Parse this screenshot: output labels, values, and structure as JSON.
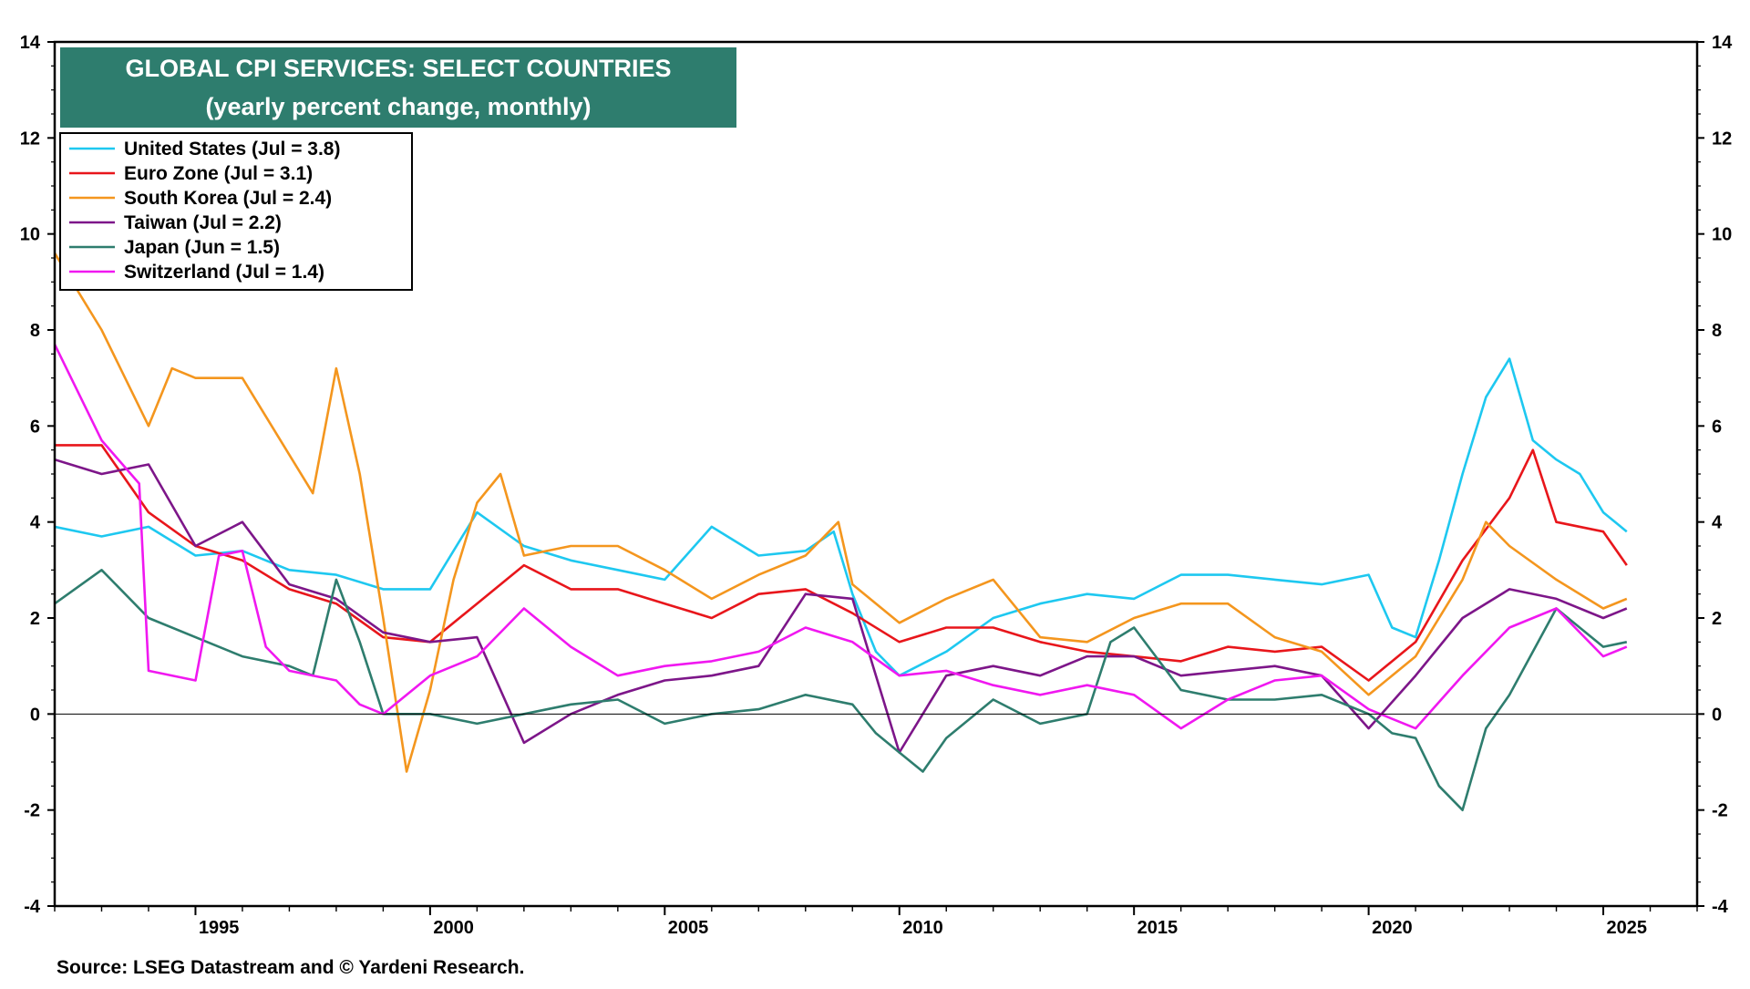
{
  "title": "GLOBAL CPI SERVICES: SELECT COUNTRIES",
  "subtitle": "(yearly percent change, monthly)",
  "source": "Source: LSEG Datastream and © Yardeni Research.",
  "colors": {
    "title_bg": "#2e7d6e",
    "zero_line": "#000000",
    "frame": "#000000"
  },
  "chart_data": {
    "type": "line",
    "title": "GLOBAL CPI SERVICES: SELECT COUNTRIES",
    "subtitle": "(yearly percent change, monthly)",
    "xlim": [
      1992.0,
      2027.0
    ],
    "ylim": [
      -4,
      14
    ],
    "x_ticks": [
      1995,
      2000,
      2005,
      2010,
      2015,
      2020,
      2025
    ],
    "x_tick_labels": [
      "1995",
      "2000",
      "2005",
      "2010",
      "2015",
      "2020",
      "2025"
    ],
    "y_ticks": [
      -4,
      -2,
      0,
      2,
      4,
      6,
      8,
      10,
      12,
      14
    ],
    "y_tick_labels": [
      "-4",
      "-2",
      "0",
      "2",
      "4",
      "6",
      "8",
      "10",
      "12",
      "14"
    ],
    "grid": false,
    "legend_position": "top-left",
    "series": [
      {
        "name": "United States (Jul = 3.8)",
        "color": "#1ec8f0",
        "x": [
          1992.0,
          1993.0,
          1994.0,
          1995.0,
          1996.0,
          1997.0,
          1998.0,
          1999.0,
          2000.0,
          2001.0,
          2002.0,
          2003.0,
          2004.0,
          2005.0,
          2006.0,
          2007.0,
          2008.0,
          2008.6,
          2009.0,
          2009.5,
          2010.0,
          2011.0,
          2012.0,
          2013.0,
          2014.0,
          2015.0,
          2016.0,
          2017.0,
          2018.0,
          2019.0,
          2020.0,
          2020.5,
          2021.0,
          2021.5,
          2022.0,
          2022.5,
          2023.0,
          2023.5,
          2024.0,
          2024.5,
          2025.0,
          2025.5
        ],
        "y": [
          3.9,
          3.7,
          3.9,
          3.3,
          3.4,
          3.0,
          2.9,
          2.6,
          2.6,
          4.2,
          3.5,
          3.2,
          3.0,
          2.8,
          3.9,
          3.3,
          3.4,
          3.8,
          2.5,
          1.3,
          0.8,
          1.3,
          2.0,
          2.3,
          2.5,
          2.4,
          2.9,
          2.9,
          2.8,
          2.7,
          2.9,
          1.8,
          1.6,
          3.2,
          5.0,
          6.6,
          7.4,
          5.7,
          5.3,
          5.0,
          4.2,
          3.8
        ]
      },
      {
        "name": "Euro Zone (Jul = 3.1)",
        "color": "#e8161b",
        "x": [
          1992.0,
          1993.0,
          1994.0,
          1995.0,
          1996.0,
          1997.0,
          1998.0,
          1999.0,
          2000.0,
          2001.0,
          2002.0,
          2003.0,
          2004.0,
          2005.0,
          2006.0,
          2007.0,
          2008.0,
          2009.0,
          2010.0,
          2011.0,
          2012.0,
          2013.0,
          2014.0,
          2015.0,
          2016.0,
          2017.0,
          2018.0,
          2019.0,
          2020.0,
          2021.0,
          2022.0,
          2023.0,
          2023.5,
          2024.0,
          2025.0,
          2025.5
        ],
        "y": [
          5.6,
          5.6,
          4.2,
          3.5,
          3.2,
          2.6,
          2.3,
          1.6,
          1.5,
          2.3,
          3.1,
          2.6,
          2.6,
          2.3,
          2.0,
          2.5,
          2.6,
          2.1,
          1.5,
          1.8,
          1.8,
          1.5,
          1.3,
          1.2,
          1.1,
          1.4,
          1.3,
          1.4,
          0.7,
          1.5,
          3.2,
          4.5,
          5.5,
          4.0,
          3.8,
          3.1
        ]
      },
      {
        "name": "South Korea (Jul = 2.4)",
        "color": "#f4961e",
        "x": [
          1992.0,
          1993.0,
          1994.0,
          1994.5,
          1995.0,
          1996.0,
          1997.0,
          1997.5,
          1998.0,
          1998.5,
          1999.0,
          1999.5,
          2000.0,
          2000.5,
          2001.0,
          2001.5,
          2002.0,
          2003.0,
          2004.0,
          2005.0,
          2006.0,
          2007.0,
          2008.0,
          2008.7,
          2009.0,
          2010.0,
          2011.0,
          2012.0,
          2013.0,
          2014.0,
          2015.0,
          2016.0,
          2017.0,
          2018.0,
          2019.0,
          2020.0,
          2021.0,
          2022.0,
          2022.5,
          2023.0,
          2024.0,
          2025.0,
          2025.5
        ],
        "y": [
          9.6,
          8.0,
          6.0,
          7.2,
          7.0,
          7.0,
          5.4,
          4.6,
          7.2,
          5.0,
          2.0,
          -1.2,
          0.5,
          2.8,
          4.4,
          5.0,
          3.3,
          3.5,
          3.5,
          3.0,
          2.4,
          2.9,
          3.3,
          4.0,
          2.7,
          1.9,
          2.4,
          2.8,
          1.6,
          1.5,
          2.0,
          2.3,
          2.3,
          1.6,
          1.3,
          0.4,
          1.2,
          2.8,
          4.0,
          3.5,
          2.8,
          2.2,
          2.4
        ]
      },
      {
        "name": "Taiwan (Jul = 2.2)",
        "color": "#7d1689",
        "x": [
          1992.0,
          1993.0,
          1994.0,
          1995.0,
          1996.0,
          1997.0,
          1998.0,
          1999.0,
          2000.0,
          2001.0,
          2002.0,
          2003.0,
          2004.0,
          2005.0,
          2006.0,
          2007.0,
          2008.0,
          2009.0,
          2010.0,
          2011.0,
          2012.0,
          2013.0,
          2014.0,
          2015.0,
          2016.0,
          2017.0,
          2018.0,
          2019.0,
          2020.0,
          2021.0,
          2022.0,
          2023.0,
          2024.0,
          2025.0,
          2025.5
        ],
        "y": [
          5.3,
          5.0,
          5.2,
          3.5,
          4.0,
          2.7,
          2.4,
          1.7,
          1.5,
          1.6,
          -0.6,
          0.0,
          0.4,
          0.7,
          0.8,
          1.0,
          2.5,
          2.4,
          -0.8,
          0.8,
          1.0,
          0.8,
          1.2,
          1.2,
          0.8,
          0.9,
          1.0,
          0.8,
          -0.3,
          0.8,
          2.0,
          2.6,
          2.4,
          2.0,
          2.2
        ]
      },
      {
        "name": "Japan (Jun = 1.5)",
        "color": "#2e7d6e",
        "x": [
          1992.0,
          1993.0,
          1994.0,
          1995.0,
          1996.0,
          1997.0,
          1997.5,
          1998.0,
          1998.5,
          1999.0,
          2000.0,
          2001.0,
          2002.0,
          2003.0,
          2004.0,
          2005.0,
          2006.0,
          2007.0,
          2008.0,
          2009.0,
          2009.5,
          2010.0,
          2010.5,
          2011.0,
          2012.0,
          2013.0,
          2014.0,
          2014.5,
          2015.0,
          2016.0,
          2017.0,
          2018.0,
          2019.0,
          2020.0,
          2020.5,
          2021.0,
          2021.5,
          2022.0,
          2022.5,
          2023.0,
          2024.0,
          2025.0,
          2025.5
        ],
        "y": [
          2.3,
          3.0,
          2.0,
          1.6,
          1.2,
          1.0,
          0.8,
          2.8,
          1.5,
          0.0,
          0.0,
          -0.2,
          0.0,
          0.2,
          0.3,
          -0.2,
          0.0,
          0.1,
          0.4,
          0.2,
          -0.4,
          -0.8,
          -1.2,
          -0.5,
          0.3,
          -0.2,
          0.0,
          1.5,
          1.8,
          0.5,
          0.3,
          0.3,
          0.4,
          0.0,
          -0.4,
          -0.5,
          -1.5,
          -2.0,
          -0.3,
          0.4,
          2.2,
          1.4,
          1.5
        ]
      },
      {
        "name": "Switzerland (Jul = 1.4)",
        "color": "#f018f0",
        "x": [
          1992.0,
          1993.0,
          1993.8,
          1994.0,
          1995.0,
          1995.5,
          1996.0,
          1996.5,
          1997.0,
          1998.0,
          1998.5,
          1999.0,
          2000.0,
          2001.0,
          2002.0,
          2003.0,
          2004.0,
          2005.0,
          2006.0,
          2007.0,
          2008.0,
          2009.0,
          2010.0,
          2011.0,
          2012.0,
          2013.0,
          2014.0,
          2015.0,
          2016.0,
          2017.0,
          2018.0,
          2019.0,
          2020.0,
          2021.0,
          2022.0,
          2023.0,
          2024.0,
          2025.0,
          2025.5
        ],
        "y": [
          7.7,
          5.7,
          4.8,
          0.9,
          0.7,
          3.3,
          3.4,
          1.4,
          0.9,
          0.7,
          0.2,
          0.0,
          0.8,
          1.2,
          2.2,
          1.4,
          0.8,
          1.0,
          1.1,
          1.3,
          1.8,
          1.5,
          0.8,
          0.9,
          0.6,
          0.4,
          0.6,
          0.4,
          -0.3,
          0.3,
          0.7,
          0.8,
          0.1,
          -0.3,
          0.8,
          1.8,
          2.2,
          1.2,
          1.4
        ]
      }
    ]
  }
}
